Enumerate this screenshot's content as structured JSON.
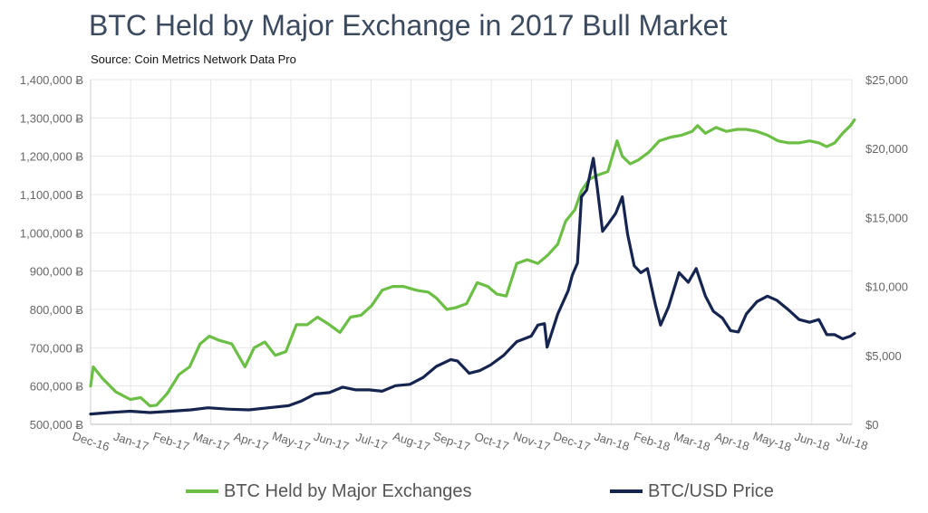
{
  "title": "BTC Held by Major Exchange in 2017 Bull Market",
  "subtitle": "Source: Coin Metrics Network Data Pro",
  "colors": {
    "exchanges": "#6cbf45",
    "price": "#16254f",
    "grid": "#e6e6e6",
    "axis_text": "#666666"
  },
  "chart_data": {
    "type": "line",
    "x_ticks": [
      "Dec-16",
      "Jan-17",
      "Feb-17",
      "Mar-17",
      "Apr-17",
      "May-17",
      "Jun-17",
      "Jul-17",
      "Aug-17",
      "Sep-17",
      "Oct-17",
      "Nov-17",
      "Dec-17",
      "Jan-18",
      "Feb-18",
      "Mar-18",
      "Apr-18",
      "May-18",
      "Jun-18",
      "Jul-18"
    ],
    "y_left": {
      "ticks": [
        500000,
        600000,
        700000,
        800000,
        900000,
        1000000,
        1100000,
        1200000,
        1300000,
        1400000
      ],
      "labels": [
        "500,000 Ƀ",
        "600,000 Ƀ",
        "700,000 Ƀ",
        "800,000 Ƀ",
        "900,000 Ƀ",
        "1,000,000 Ƀ",
        "1,100,000 Ƀ",
        "1,200,000 Ƀ",
        "1,300,000 Ƀ",
        "1,400,000 Ƀ"
      ],
      "range": [
        500000,
        1400000
      ]
    },
    "y_right": {
      "ticks": [
        0,
        5000,
        10000,
        15000,
        20000,
        25000
      ],
      "labels": [
        "$0",
        "$5,000",
        "$10,000",
        "$15,000",
        "$20,000",
        "$25,000"
      ],
      "range": [
        0,
        25000
      ]
    },
    "grid": true,
    "legend_position": "bottom",
    "series": [
      {
        "name": "BTC Held by Major Exchanges",
        "axis": "left",
        "x": [
          "2016-12-01",
          "2016-12-03",
          "2016-12-10",
          "2016-12-20",
          "2016-12-31",
          "2017-01-08",
          "2017-01-15",
          "2017-01-20",
          "2017-01-28",
          "2017-02-06",
          "2017-02-14",
          "2017-02-22",
          "2017-03-01",
          "2017-03-08",
          "2017-03-18",
          "2017-03-28",
          "2017-04-04",
          "2017-04-12",
          "2017-04-20",
          "2017-04-28",
          "2017-05-06",
          "2017-05-14",
          "2017-05-22",
          "2017-05-31",
          "2017-06-08",
          "2017-06-16",
          "2017-06-24",
          "2017-07-02",
          "2017-07-10",
          "2017-07-18",
          "2017-07-26",
          "2017-08-05",
          "2017-08-14",
          "2017-08-20",
          "2017-08-28",
          "2017-09-04",
          "2017-09-12",
          "2017-09-20",
          "2017-09-28",
          "2017-10-05",
          "2017-10-12",
          "2017-10-20",
          "2017-10-28",
          "2017-11-05",
          "2017-11-12",
          "2017-11-20",
          "2017-11-26",
          "2017-12-03",
          "2017-12-08",
          "2017-12-14",
          "2017-12-20",
          "2017-12-28",
          "2018-01-04",
          "2018-01-08",
          "2018-01-14",
          "2018-01-20",
          "2018-01-28",
          "2018-02-05",
          "2018-02-14",
          "2018-02-22",
          "2018-03-02",
          "2018-03-06",
          "2018-03-12",
          "2018-03-20",
          "2018-03-28",
          "2018-04-05",
          "2018-04-12",
          "2018-04-20",
          "2018-04-28",
          "2018-05-06",
          "2018-05-14",
          "2018-05-22",
          "2018-05-30",
          "2018-06-06",
          "2018-06-12",
          "2018-06-18",
          "2018-06-24",
          "2018-06-30",
          "2018-07-03"
        ],
        "y": [
          600000,
          650000,
          620000,
          585000,
          565000,
          570000,
          548000,
          550000,
          580000,
          630000,
          650000,
          710000,
          730000,
          720000,
          710000,
          650000,
          700000,
          715000,
          680000,
          690000,
          760000,
          760000,
          780000,
          760000,
          740000,
          780000,
          785000,
          810000,
          850000,
          860000,
          860000,
          850000,
          845000,
          830000,
          800000,
          805000,
          815000,
          870000,
          860000,
          840000,
          835000,
          920000,
          930000,
          920000,
          940000,
          970000,
          1030000,
          1060000,
          1110000,
          1140000,
          1150000,
          1160000,
          1240000,
          1200000,
          1180000,
          1190000,
          1210000,
          1240000,
          1250000,
          1255000,
          1265000,
          1280000,
          1260000,
          1275000,
          1265000,
          1270000,
          1270000,
          1265000,
          1255000,
          1240000,
          1235000,
          1235000,
          1240000,
          1235000,
          1225000,
          1235000,
          1260000,
          1280000,
          1295000
        ]
      },
      {
        "name": "BTC/USD Price",
        "axis": "right",
        "x": [
          "2016-12-01",
          "2016-12-15",
          "2016-12-31",
          "2017-01-15",
          "2017-01-31",
          "2017-02-15",
          "2017-02-28",
          "2017-03-15",
          "2017-03-31",
          "2017-04-15",
          "2017-04-30",
          "2017-05-10",
          "2017-05-20",
          "2017-05-31",
          "2017-06-10",
          "2017-06-20",
          "2017-06-30",
          "2017-07-10",
          "2017-07-20",
          "2017-07-31",
          "2017-08-10",
          "2017-08-20",
          "2017-08-31",
          "2017-09-05",
          "2017-09-14",
          "2017-09-22",
          "2017-09-30",
          "2017-10-10",
          "2017-10-20",
          "2017-10-31",
          "2017-11-05",
          "2017-11-10",
          "2017-11-12",
          "2017-11-20",
          "2017-11-28",
          "2017-12-01",
          "2017-12-05",
          "2017-12-08",
          "2017-12-12",
          "2017-12-17",
          "2017-12-20",
          "2017-12-24",
          "2017-12-28",
          "2018-01-03",
          "2018-01-08",
          "2018-01-12",
          "2018-01-17",
          "2018-01-22",
          "2018-01-27",
          "2018-02-02",
          "2018-02-06",
          "2018-02-12",
          "2018-02-20",
          "2018-02-27",
          "2018-03-05",
          "2018-03-12",
          "2018-03-18",
          "2018-03-25",
          "2018-03-31",
          "2018-04-06",
          "2018-04-12",
          "2018-04-20",
          "2018-04-28",
          "2018-05-05",
          "2018-05-14",
          "2018-05-22",
          "2018-05-30",
          "2018-06-06",
          "2018-06-12",
          "2018-06-18",
          "2018-06-24",
          "2018-06-30",
          "2018-07-03"
        ],
        "y": [
          750,
          850,
          950,
          850,
          950,
          1050,
          1200,
          1100,
          1050,
          1200,
          1350,
          1700,
          2200,
          2300,
          2700,
          2500,
          2500,
          2400,
          2800,
          2900,
          3400,
          4200,
          4700,
          4600,
          3700,
          3900,
          4300,
          5000,
          6000,
          6400,
          7200,
          7300,
          5600,
          8000,
          9700,
          10800,
          11700,
          16500,
          17000,
          19300,
          17200,
          14000,
          14500,
          15300,
          16500,
          13800,
          11500,
          11000,
          11300,
          8700,
          7200,
          8500,
          11000,
          10300,
          11300,
          9300,
          8200,
          7700,
          6800,
          6700,
          8000,
          8900,
          9300,
          9000,
          8300,
          7600,
          7400,
          7600,
          6500,
          6500,
          6200,
          6400,
          6600
        ]
      }
    ]
  }
}
